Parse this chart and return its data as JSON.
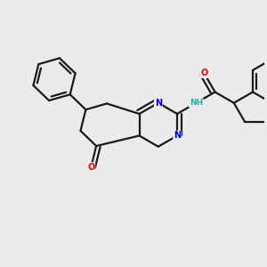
{
  "background_color": "#ebebeb",
  "bond_color": "#1a1a1a",
  "atom_colors": {
    "N": "#0000ee",
    "O": "#ee0000",
    "H": "#20b2aa",
    "C": "#1a1a1a"
  },
  "figsize": [
    3.0,
    3.0
  ],
  "dpi": 100
}
